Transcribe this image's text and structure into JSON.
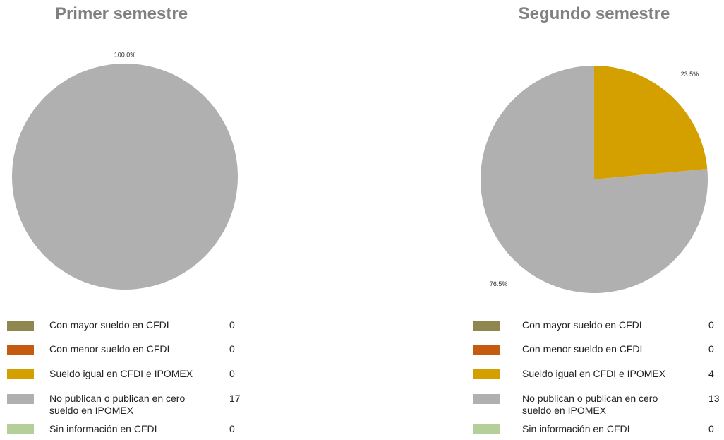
{
  "chart_data": [
    {
      "type": "pie",
      "title": "Primer semestre",
      "categories": [
        "Con mayor sueldo en CFDI",
        "Con menor sueldo en CFDI",
        "Sueldo igual en CFDI e IPOMEX",
        "No publican o publican en cero sueldo en IPOMEX",
        "Sin información en CFDI"
      ],
      "values": [
        0,
        0,
        0,
        17,
        0
      ],
      "percent_labels": [
        null,
        null,
        null,
        "100.0%",
        null
      ],
      "colors": [
        "#8f8650",
        "#c55a11",
        "#d4a000",
        "#b0b0b0",
        "#b5cf9a"
      ]
    },
    {
      "type": "pie",
      "title": "Segundo semestre",
      "categories": [
        "Con mayor sueldo en CFDI",
        "Con menor sueldo en CFDI",
        "Sueldo igual en CFDI e IPOMEX",
        "No publican o publican en cero sueldo en IPOMEX",
        "Sin información en CFDI"
      ],
      "values": [
        0,
        0,
        4,
        13,
        0
      ],
      "percent_labels": [
        null,
        null,
        "23.5%",
        "76.5%",
        null
      ],
      "colors": [
        "#8f8650",
        "#c55a11",
        "#d4a000",
        "#b0b0b0",
        "#b5cf9a"
      ]
    }
  ]
}
